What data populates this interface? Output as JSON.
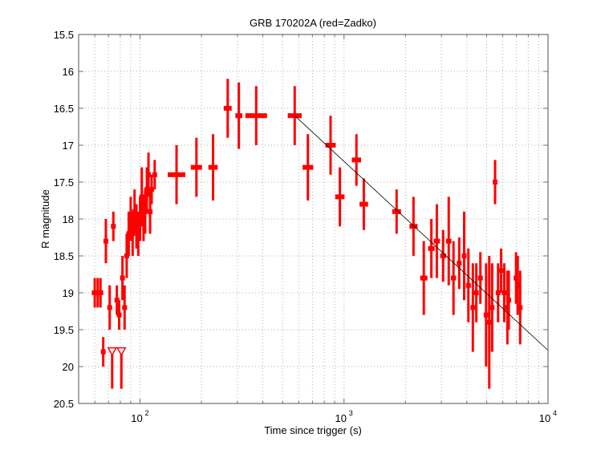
{
  "chart_data": {
    "type": "scatter",
    "title": "GRB 170202A (red=Zadko)",
    "xlabel": "Time since trigger (s)",
    "ylabel": "R magnitude",
    "xscale": "log",
    "xlim": [
      50,
      10000
    ],
    "ylim": [
      15.5,
      20.5
    ],
    "y_inverted": true,
    "grid": true,
    "x_major_ticks": [
      100,
      1000,
      10000
    ],
    "x_tick_labels": [
      "10^2",
      "10^3",
      "10^4"
    ],
    "y_ticks": [
      15.5,
      16,
      16.5,
      17,
      17.5,
      18,
      18.5,
      19,
      19.5,
      20,
      20.5
    ],
    "y_tick_labels": [
      "15.5",
      "16",
      "16.5",
      "17",
      "17.5",
      "18",
      "18.5",
      "19",
      "19.5",
      "20",
      "20.5"
    ],
    "series": [
      {
        "name": "Zadko",
        "color": "#ff0000",
        "points": [
          {
            "t": 60,
            "mag": 19.0,
            "err": 0.2,
            "terr": 2
          },
          {
            "t": 62,
            "mag": 19.0,
            "err": 0.2,
            "terr": 2
          },
          {
            "t": 64,
            "mag": 19.0,
            "err": 0.2,
            "terr": 2
          },
          {
            "t": 66,
            "mag": 19.8,
            "err": 0.2,
            "terr": 1
          },
          {
            "t": 68,
            "mag": 18.3,
            "err": 0.3,
            "terr": 1
          },
          {
            "t": 71,
            "mag": 19.2,
            "err": 0.3,
            "terr": 1
          },
          {
            "t": 74,
            "mag": 18.1,
            "err": 0.2,
            "terr": 1
          },
          {
            "t": 77,
            "mag": 19.1,
            "err": 0.2,
            "terr": 1
          },
          {
            "t": 79,
            "mag": 19.3,
            "err": 0.2,
            "terr": 1
          },
          {
            "t": 82,
            "mag": 18.8,
            "err": 0.3,
            "terr": 1
          },
          {
            "t": 84,
            "mag": 19.2,
            "err": 0.3,
            "terr": 1
          },
          {
            "t": 86,
            "mag": 18.5,
            "err": 0.3,
            "terr": 1
          },
          {
            "t": 88,
            "mag": 18.2,
            "err": 0.3,
            "terr": 1
          },
          {
            "t": 90,
            "mag": 18.0,
            "err": 0.3,
            "terr": 1
          },
          {
            "t": 92,
            "mag": 18.2,
            "err": 0.3,
            "terr": 1
          },
          {
            "t": 94,
            "mag": 17.9,
            "err": 0.3,
            "terr": 1
          },
          {
            "t": 96,
            "mag": 18.1,
            "err": 0.3,
            "terr": 1
          },
          {
            "t": 98,
            "mag": 18.2,
            "err": 0.3,
            "terr": 1
          },
          {
            "t": 100,
            "mag": 18.0,
            "err": 0.3,
            "terr": 1
          },
          {
            "t": 102,
            "mag": 17.7,
            "err": 0.4,
            "terr": 1
          },
          {
            "t": 104,
            "mag": 18.0,
            "err": 0.3,
            "terr": 1
          },
          {
            "t": 106,
            "mag": 17.9,
            "err": 0.3,
            "terr": 1
          },
          {
            "t": 108,
            "mag": 17.6,
            "err": 0.3,
            "terr": 1
          },
          {
            "t": 110,
            "mag": 17.4,
            "err": 0.3,
            "terr": 1
          },
          {
            "t": 112,
            "mag": 17.9,
            "err": 0.3,
            "terr": 1
          },
          {
            "t": 114,
            "mag": 17.6,
            "err": 0.2,
            "terr": 1
          },
          {
            "t": 118,
            "mag": 17.4,
            "err": 0.2,
            "terr": 1
          },
          {
            "t": 151,
            "mag": 17.4,
            "err": 0.4,
            "terr": 15
          },
          {
            "t": 189,
            "mag": 17.3,
            "err": 0.4,
            "terr": 12
          },
          {
            "t": 228,
            "mag": 17.3,
            "err": 0.45,
            "terr": 12
          },
          {
            "t": 269,
            "mag": 16.5,
            "err": 0.4,
            "terr": 12
          },
          {
            "t": 305,
            "mag": 16.6,
            "err": 0.45,
            "terr": 12
          },
          {
            "t": 371,
            "mag": 16.6,
            "err": 0.4,
            "terr": 45
          },
          {
            "t": 573,
            "mag": 16.6,
            "err": 0.4,
            "terr": 45
          },
          {
            "t": 665,
            "mag": 17.3,
            "err": 0.45,
            "terr": 40
          },
          {
            "t": 859,
            "mag": 17.0,
            "err": 0.4,
            "terr": 50
          },
          {
            "t": 954,
            "mag": 17.7,
            "err": 0.4,
            "terr": 50
          },
          {
            "t": 1150,
            "mag": 17.2,
            "err": 0.35,
            "terr": 60
          },
          {
            "t": 1250,
            "mag": 17.8,
            "err": 0.35,
            "terr": 60
          },
          {
            "t": 1810,
            "mag": 17.9,
            "err": 0.3,
            "terr": 90
          },
          {
            "t": 2190,
            "mag": 18.1,
            "err": 0.4,
            "terr": 100
          },
          {
            "t": 2460,
            "mag": 18.8,
            "err": 0.5,
            "terr": 100
          },
          {
            "t": 2680,
            "mag": 18.4,
            "err": 0.4,
            "terr": 100
          },
          {
            "t": 2850,
            "mag": 18.3,
            "err": 0.5,
            "terr": 100
          },
          {
            "t": 3060,
            "mag": 18.5,
            "err": 0.35,
            "terr": 100
          },
          {
            "t": 3260,
            "mag": 18.3,
            "err": 0.6,
            "terr": 100
          },
          {
            "t": 3440,
            "mag": 18.8,
            "err": 0.5,
            "terr": 100
          },
          {
            "t": 3670,
            "mag": 18.6,
            "err": 0.35,
            "terr": 100
          },
          {
            "t": 3880,
            "mag": 18.5,
            "err": 0.6,
            "terr": 100
          },
          {
            "t": 4070,
            "mag": 18.9,
            "err": 0.5,
            "terr": 100
          },
          {
            "t": 4280,
            "mag": 19.2,
            "err": 0.6,
            "terr": 100
          },
          {
            "t": 4450,
            "mag": 19.0,
            "err": 0.4,
            "terr": 100
          },
          {
            "t": 4660,
            "mag": 18.8,
            "err": 0.35,
            "terr": 100
          },
          {
            "t": 4970,
            "mag": 19.3,
            "err": 0.7,
            "terr": 100
          },
          {
            "t": 5150,
            "mag": 19.4,
            "err": 0.9,
            "terr": 100
          },
          {
            "t": 5320,
            "mag": 19.2,
            "err": 0.6,
            "terr": 100
          },
          {
            "t": 5500,
            "mag": 17.5,
            "err": 0.3,
            "terr": 80
          },
          {
            "t": 5690,
            "mag": 19.0,
            "err": 0.4,
            "terr": 100
          },
          {
            "t": 5890,
            "mag": 18.7,
            "err": 0.3,
            "terr": 100
          },
          {
            "t": 6100,
            "mag": 19.0,
            "err": 0.4,
            "terr": 100
          },
          {
            "t": 6320,
            "mag": 19.2,
            "err": 0.5,
            "terr": 100
          },
          {
            "t": 6420,
            "mag": 19.1,
            "err": 0.4,
            "terr": 100
          },
          {
            "t": 6970,
            "mag": 18.8,
            "err": 0.35,
            "terr": 100
          },
          {
            "t": 7100,
            "mag": 18.9,
            "err": 0.4,
            "terr": 100
          },
          {
            "t": 7300,
            "mag": 19.2,
            "err": 0.5,
            "terr": 100
          }
        ]
      },
      {
        "name": "Upper limits",
        "color": "#ff0000",
        "marker": "triangle-down",
        "points": [
          {
            "t": 73,
            "mag": 19.8,
            "err_down": 0.5
          },
          {
            "t": 81,
            "mag": 19.8,
            "err_down": 0.5
          }
        ]
      },
      {
        "name": "Power-law fit",
        "color": "#000000",
        "type": "line",
        "points": [
          {
            "t": 573,
            "mag": 16.6
          },
          {
            "t": 10000,
            "mag": 19.78
          }
        ]
      }
    ]
  }
}
